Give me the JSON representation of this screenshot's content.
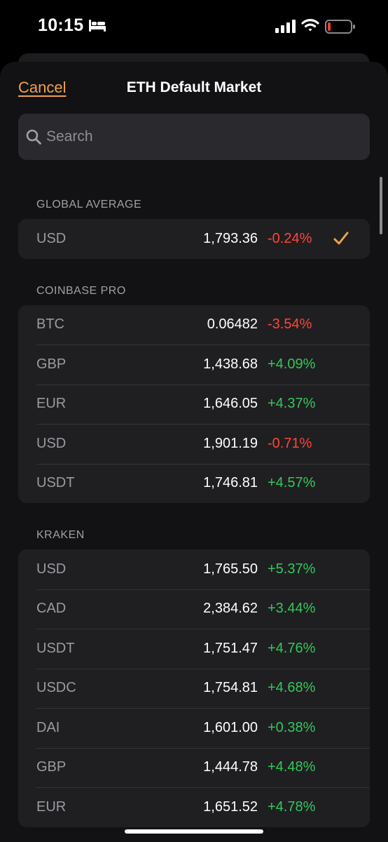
{
  "status_bar": {
    "time": "10:15",
    "icons": [
      "bed-icon",
      "cellular-signal-icon",
      "wifi-icon",
      "battery-low-icon"
    ]
  },
  "nav": {
    "cancel_label": "Cancel",
    "title": "ETH Default Market"
  },
  "search": {
    "placeholder": "Search",
    "value": ""
  },
  "colors": {
    "accent": "#f2a04a",
    "positive": "#34c759",
    "negative": "#ff453a"
  },
  "sections": [
    {
      "title": "GLOBAL AVERAGE",
      "rows": [
        {
          "currency": "USD",
          "price": "1,793.36",
          "change": "-0.24%",
          "direction": "down",
          "selected": true
        }
      ]
    },
    {
      "title": "COINBASE PRO",
      "rows": [
        {
          "currency": "BTC",
          "price": "0.06482",
          "change": "-3.54%",
          "direction": "down"
        },
        {
          "currency": "GBP",
          "price": "1,438.68",
          "change": "+4.09%",
          "direction": "up"
        },
        {
          "currency": "EUR",
          "price": "1,646.05",
          "change": "+4.37%",
          "direction": "up"
        },
        {
          "currency": "USD",
          "price": "1,901.19",
          "change": "-0.71%",
          "direction": "down"
        },
        {
          "currency": "USDT",
          "price": "1,746.81",
          "change": "+4.57%",
          "direction": "up"
        }
      ]
    },
    {
      "title": "KRAKEN",
      "rows": [
        {
          "currency": "USD",
          "price": "1,765.50",
          "change": "+5.37%",
          "direction": "up"
        },
        {
          "currency": "CAD",
          "price": "2,384.62",
          "change": "+3.44%",
          "direction": "up"
        },
        {
          "currency": "USDT",
          "price": "1,751.47",
          "change": "+4.76%",
          "direction": "up"
        },
        {
          "currency": "USDC",
          "price": "1,754.81",
          "change": "+4.68%",
          "direction": "up"
        },
        {
          "currency": "DAI",
          "price": "1,601.00",
          "change": "+0.38%",
          "direction": "up"
        },
        {
          "currency": "GBP",
          "price": "1,444.78",
          "change": "+4.48%",
          "direction": "up"
        },
        {
          "currency": "EUR",
          "price": "1,651.52",
          "change": "+4.78%",
          "direction": "up"
        }
      ]
    }
  ]
}
